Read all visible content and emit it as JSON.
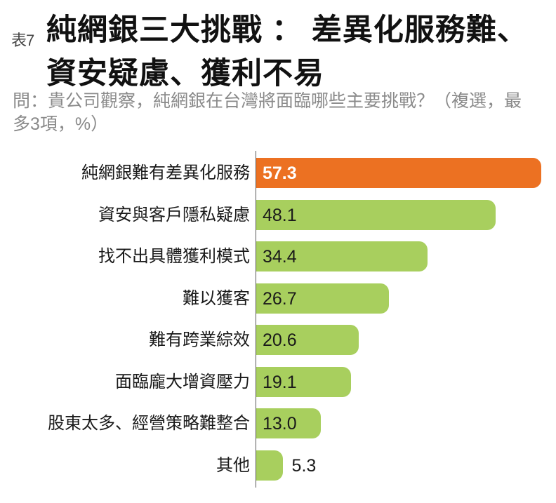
{
  "header": {
    "prefix": "表7",
    "title_line1": "純網銀三大挑戰 ： 差異化服務難、",
    "title_line2": "資安疑慮、獲利不易",
    "subtitle": "問：貴公司觀察，純網銀在台灣將面臨哪些主要挑戰？（複選，最多3項，%）"
  },
  "colors": {
    "highlight": "#ec7122",
    "bar": "#a8cf5e",
    "axis": "#555555",
    "subtitle": "#8a8a8a"
  },
  "chart_data": {
    "type": "bar",
    "orientation": "horizontal",
    "title": "純網銀三大挑戰 ： 差異化服務難、資安疑慮、獲利不易",
    "subtitle": "問：貴公司觀察，純網銀在台灣將面臨哪些主要挑戰？（複選，最多3項，%）",
    "xlabel": "",
    "ylabel": "",
    "unit": "%",
    "grid": false,
    "legend": null,
    "categories": [
      "純網銀難有差異化服務",
      "資安與客戶隱私疑慮",
      "找不出具體獲利模式",
      "難以獲客",
      "難有跨業綜效",
      "面臨龐大增資壓力",
      "股東太多、經營策略難整合",
      "其他"
    ],
    "values": [
      57.3,
      48.1,
      34.4,
      26.7,
      20.6,
      19.1,
      13.0,
      5.3
    ],
    "value_labels": [
      "57.3",
      "48.1",
      "34.4",
      "26.7",
      "20.6",
      "19.1",
      "13.0",
      "5.3"
    ],
    "highlighted_index": 0
  }
}
